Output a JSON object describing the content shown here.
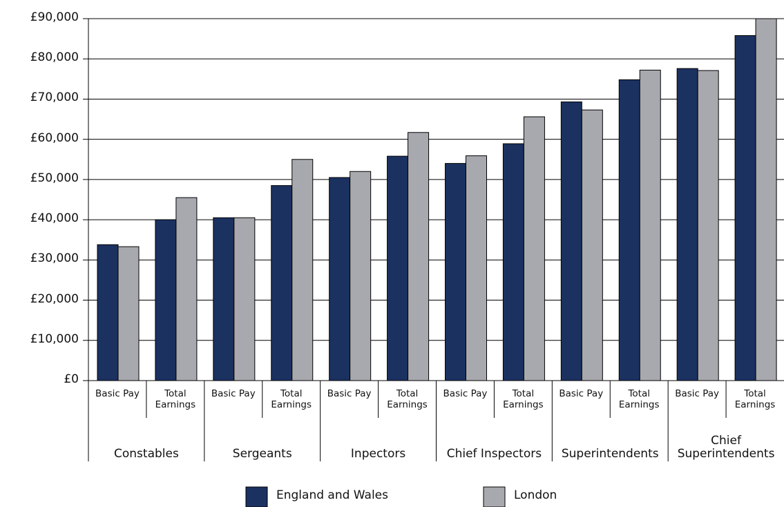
{
  "chart_data": {
    "type": "bar",
    "categories": [
      "Basic Pay",
      "Total Earnings",
      "Basic Pay",
      "Total Earnings",
      "Basic Pay",
      "Total Earnings",
      "Basic Pay",
      "Total Earnings",
      "Basic Pay",
      "Total Earnings",
      "Basic Pay",
      "Total Earnings"
    ],
    "groups": [
      "Constables",
      "Sergeants",
      "Inpectors",
      "Chief Inspectors",
      "Superintendents",
      "Chief Superintendents"
    ],
    "series": [
      {
        "name": "England and Wales",
        "color": "#1b3160",
        "values": [
          33800,
          40000,
          40500,
          48500,
          50500,
          55800,
          54000,
          58900,
          69300,
          74800,
          77600,
          85800
        ]
      },
      {
        "name": "London",
        "color": "#a7a9ae",
        "values": [
          33300,
          45500,
          40500,
          55000,
          52000,
          61700,
          55900,
          65600,
          67300,
          77200,
          77100,
          90000
        ]
      }
    ],
    "ylim": [
      0,
      90000
    ],
    "yticks": [
      {
        "value": 0,
        "label": "£0"
      },
      {
        "value": 10000,
        "label": "£10,000"
      },
      {
        "value": 20000,
        "label": "£20,000"
      },
      {
        "value": 30000,
        "label": "£30,000"
      },
      {
        "value": 40000,
        "label": "£40,000"
      },
      {
        "value": 50000,
        "label": "£50,000"
      },
      {
        "value": 60000,
        "label": "£60,000"
      },
      {
        "value": 70000,
        "label": "£70,000"
      },
      {
        "value": 80000,
        "label": "£80,000"
      },
      {
        "value": 90000,
        "label": "£90,000"
      }
    ],
    "grid": true,
    "legend": "bottom"
  }
}
